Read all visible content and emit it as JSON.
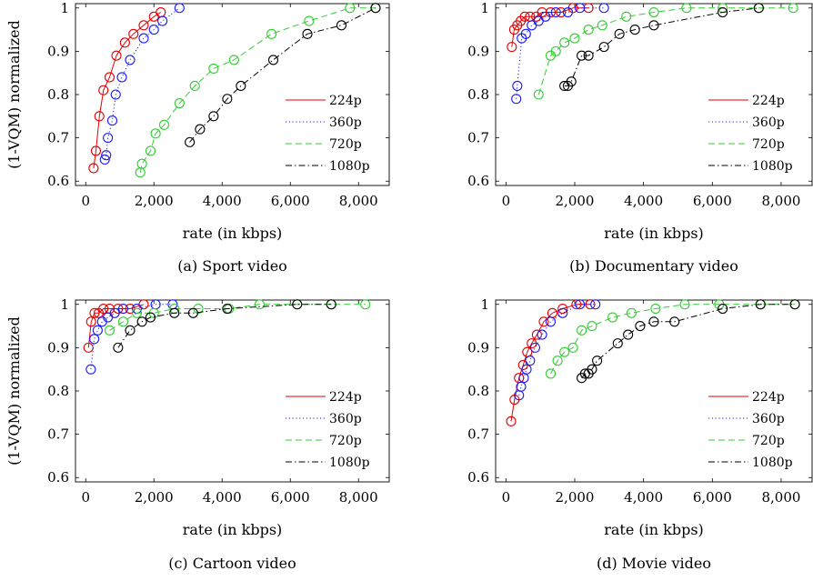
{
  "colors": {
    "224p": "#e60000",
    "360p": "#1a1aff",
    "720p": "#33cc33",
    "1080p": "#000000"
  },
  "legend": [
    {
      "label": "224p",
      "dash": "solid"
    },
    {
      "label": "360p",
      "dash": "dotted"
    },
    {
      "label": "720p",
      "dash": "dashed"
    },
    {
      "label": "1080p",
      "dash": "dashdot"
    }
  ],
  "chart_data": [
    {
      "type": "scatter",
      "caption": "(a) Sport video",
      "xlabel": "rate (in kbps)",
      "ylabel": "(1-VQM) normalized",
      "xlim": [
        -300,
        8900
      ],
      "ylim": [
        0.59,
        1.01
      ],
      "xticks": [
        0,
        2000,
        4000,
        6000,
        8000
      ],
      "xtick_labels": [
        "0",
        "2,000",
        "4,000",
        "6,000",
        "8,000"
      ],
      "yticks": [
        0.6,
        0.7,
        0.8,
        0.9,
        1.0
      ],
      "ytick_labels": [
        "0.6",
        "0.7",
        "0.8",
        "0.9",
        "1"
      ],
      "legend_position": "bottom-right",
      "series": [
        {
          "name": "224p",
          "x": [
            230,
            300,
            400,
            520,
            700,
            900,
            1150,
            1400,
            1700,
            2000,
            2200
          ],
          "y": [
            0.63,
            0.67,
            0.75,
            0.81,
            0.84,
            0.89,
            0.92,
            0.94,
            0.96,
            0.98,
            0.99
          ]
        },
        {
          "name": "360p",
          "x": [
            560,
            600,
            650,
            780,
            880,
            1060,
            1300,
            1700,
            2000,
            2250,
            2750
          ],
          "y": [
            0.65,
            0.66,
            0.7,
            0.74,
            0.8,
            0.84,
            0.88,
            0.93,
            0.95,
            0.97,
            1.0
          ]
        },
        {
          "name": "720p",
          "x": [
            1600,
            1650,
            1900,
            2050,
            2300,
            2750,
            3200,
            3750,
            4350,
            5450,
            6550,
            7750,
            8500
          ],
          "y": [
            0.62,
            0.64,
            0.67,
            0.71,
            0.73,
            0.78,
            0.82,
            0.86,
            0.88,
            0.94,
            0.97,
            1.0,
            1.0
          ]
        },
        {
          "name": "1080p",
          "x": [
            3050,
            3350,
            3750,
            4150,
            4550,
            5500,
            6500,
            7500,
            8500
          ],
          "y": [
            0.69,
            0.72,
            0.75,
            0.79,
            0.82,
            0.88,
            0.94,
            0.96,
            1.0
          ]
        }
      ]
    },
    {
      "type": "scatter",
      "caption": "(b) Documentary video",
      "xlabel": "rate (in kbps)",
      "ylabel": "",
      "xlim": [
        -300,
        8900
      ],
      "ylim": [
        0.59,
        1.01
      ],
      "xticks": [
        0,
        2000,
        4000,
        6000,
        8000
      ],
      "xtick_labels": [
        "0",
        "2,000",
        "4,000",
        "6,000",
        "8,000"
      ],
      "yticks": [
        0.6,
        0.7,
        0.8,
        0.9,
        1.0
      ],
      "ytick_labels": [
        "0.6",
        "0.7",
        "0.8",
        "0.9",
        "1"
      ],
      "legend_position": "bottom-right",
      "series": [
        {
          "name": "224p",
          "x": [
            170,
            240,
            330,
            430,
            550,
            700,
            880,
            1050,
            1300,
            1600,
            1950,
            2400
          ],
          "y": [
            0.91,
            0.95,
            0.96,
            0.97,
            0.98,
            0.98,
            0.98,
            0.99,
            0.99,
            0.99,
            1.0,
            1.0
          ]
        },
        {
          "name": "360p",
          "x": [
            300,
            330,
            460,
            580,
            750,
            950,
            1150,
            1450,
            1800,
            2150,
            2850
          ],
          "y": [
            0.79,
            0.82,
            0.93,
            0.94,
            0.96,
            0.97,
            0.98,
            0.99,
            0.99,
            1.0,
            1.0
          ]
        },
        {
          "name": "720p",
          "x": [
            950,
            1300,
            1450,
            1700,
            2000,
            2400,
            2800,
            3500,
            4300,
            5250,
            6300,
            7350,
            8350
          ],
          "y": [
            0.8,
            0.89,
            0.9,
            0.92,
            0.93,
            0.95,
            0.96,
            0.98,
            0.99,
            1.0,
            1.0,
            1.0,
            1.0
          ]
        },
        {
          "name": "1080p",
          "x": [
            1700,
            1800,
            1900,
            2200,
            2400,
            2850,
            3300,
            3750,
            4300,
            6300,
            7350
          ],
          "y": [
            0.82,
            0.82,
            0.83,
            0.89,
            0.89,
            0.91,
            0.94,
            0.95,
            0.96,
            0.99,
            1.0
          ]
        }
      ]
    },
    {
      "type": "scatter",
      "caption": "(c) Cartoon video",
      "xlabel": "rate (in kbps)",
      "ylabel": "(1-VQM) normalized",
      "xlim": [
        -300,
        8900
      ],
      "ylim": [
        0.59,
        1.01
      ],
      "xticks": [
        0,
        2000,
        4000,
        6000,
        8000
      ],
      "xtick_labels": [
        "0",
        "2,000",
        "4,000",
        "6,000",
        "8,000"
      ],
      "yticks": [
        0.6,
        0.7,
        0.8,
        0.9,
        1.0
      ],
      "ytick_labels": [
        "0.6",
        "0.7",
        "0.8",
        "0.9",
        "1"
      ],
      "legend_position": "bottom-right",
      "series": [
        {
          "name": "224p",
          "x": [
            80,
            160,
            260,
            380,
            520,
            700,
            950,
            1300,
            1700
          ],
          "y": [
            0.9,
            0.96,
            0.98,
            0.98,
            0.99,
            0.99,
            0.99,
            0.99,
            1.0
          ]
        },
        {
          "name": "360p",
          "x": [
            150,
            250,
            350,
            480,
            650,
            850,
            1100,
            1500,
            2050,
            2550
          ],
          "y": [
            0.85,
            0.92,
            0.94,
            0.96,
            0.97,
            0.98,
            0.99,
            0.99,
            1.0,
            1.0
          ]
        },
        {
          "name": "720p",
          "x": [
            700,
            1100,
            1500,
            2000,
            2600,
            3300,
            4200,
            5100,
            6200,
            7200,
            8200
          ],
          "y": [
            0.94,
            0.96,
            0.98,
            0.98,
            0.99,
            0.99,
            0.99,
            1.0,
            1.0,
            1.0,
            1.0
          ]
        },
        {
          "name": "1080p",
          "x": [
            950,
            1300,
            1650,
            1900,
            2600,
            3150,
            4150,
            6200,
            7200
          ],
          "y": [
            0.9,
            0.94,
            0.96,
            0.97,
            0.98,
            0.98,
            0.99,
            1.0,
            1.0
          ]
        }
      ]
    },
    {
      "type": "scatter",
      "caption": "(d) Movie video",
      "xlabel": "rate (in kbps)",
      "ylabel": "",
      "xlim": [
        -300,
        8900
      ],
      "ylim": [
        0.59,
        1.01
      ],
      "xticks": [
        0,
        2000,
        4000,
        6000,
        8000
      ],
      "xtick_labels": [
        "0",
        "2,000",
        "4,000",
        "6,000",
        "8,000"
      ],
      "yticks": [
        0.6,
        0.7,
        0.8,
        0.9,
        1.0
      ],
      "ytick_labels": [
        "0.6",
        "0.7",
        "0.8",
        "0.9",
        "1"
      ],
      "legend_position": "bottom-right",
      "series": [
        {
          "name": "224p",
          "x": [
            150,
            250,
            380,
            500,
            620,
            750,
            900,
            1100,
            1350,
            1650,
            2050,
            2450
          ],
          "y": [
            0.73,
            0.78,
            0.83,
            0.86,
            0.89,
            0.91,
            0.93,
            0.96,
            0.98,
            0.99,
            1.0,
            1.0
          ]
        },
        {
          "name": "360p",
          "x": [
            380,
            440,
            520,
            600,
            700,
            850,
            1050,
            1300,
            1650,
            2150,
            2600
          ],
          "y": [
            0.79,
            0.81,
            0.83,
            0.85,
            0.87,
            0.9,
            0.93,
            0.96,
            0.98,
            1.0,
            1.0
          ]
        },
        {
          "name": "720p",
          "x": [
            1300,
            1500,
            1700,
            1950,
            2200,
            2500,
            3100,
            3650,
            4350,
            5200,
            6200,
            7400,
            8400
          ],
          "y": [
            0.84,
            0.87,
            0.89,
            0.9,
            0.94,
            0.95,
            0.97,
            0.98,
            0.99,
            1.0,
            1.0,
            1.0,
            1.0
          ]
        },
        {
          "name": "1080p",
          "x": [
            2200,
            2300,
            2400,
            2500,
            2650,
            3250,
            3550,
            3900,
            4300,
            4900,
            6300,
            7400,
            8400
          ],
          "y": [
            0.83,
            0.84,
            0.84,
            0.85,
            0.87,
            0.91,
            0.93,
            0.95,
            0.96,
            0.96,
            0.99,
            1.0,
            1.0
          ]
        }
      ]
    }
  ]
}
